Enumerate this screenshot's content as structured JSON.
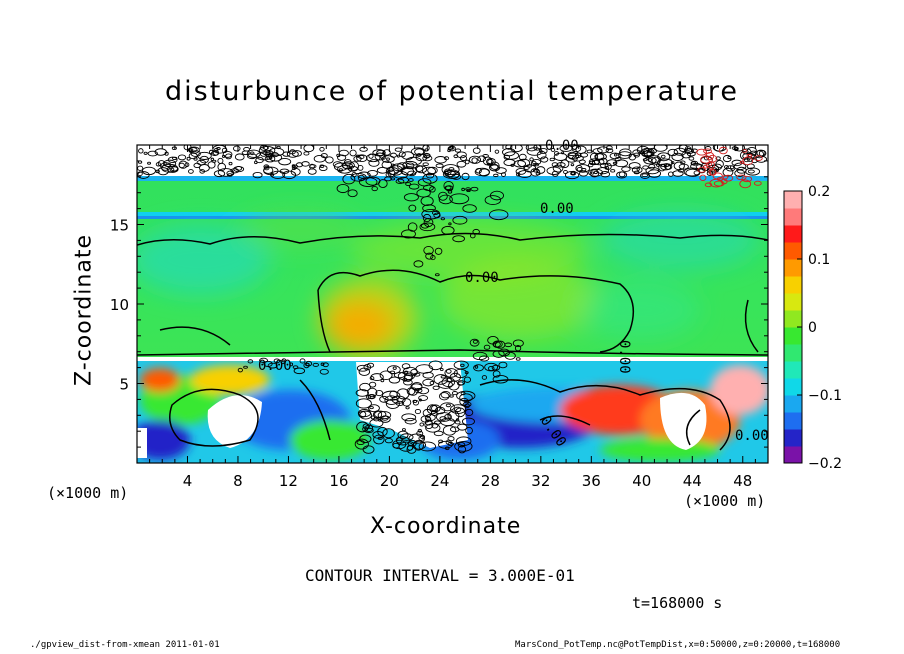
{
  "chart_data": {
    "type": "heatmap",
    "title": "disturbunce of potential temperature",
    "xlabel": "X-coordinate",
    "ylabel": "Z-coordinate",
    "x_unit_left": "(×1000 m)",
    "x_unit_right": "(×1000 m)",
    "xlim": [
      0,
      50
    ],
    "ylim": [
      0,
      20
    ],
    "xticks": [
      4,
      8,
      12,
      16,
      20,
      24,
      28,
      32,
      36,
      40,
      44,
      48
    ],
    "yticks": [
      5,
      10,
      15
    ],
    "colorbar": {
      "min": -0.2,
      "max": 0.2,
      "ticks": [
        -0.2,
        -0.1,
        0,
        0.1,
        0.2
      ],
      "tick_labels": [
        "−0.2",
        "−0.1",
        "0",
        "0.1",
        "0.2"
      ],
      "colors": [
        "#7a12a8",
        "#2424c8",
        "#1e6ef0",
        "#1aa8f0",
        "#10d8e8",
        "#20e8b8",
        "#30e870",
        "#38e830",
        "#90e820",
        "#d8e810",
        "#f8d000",
        "#ff9a00",
        "#ff5a00",
        "#ff1a1a",
        "#ff7a7a",
        "#ffb0b0"
      ]
    },
    "contour_labels": [
      "0.00",
      "0.00",
      "0.00",
      "0.00",
      "0.00",
      "0.00",
      "0.00"
    ],
    "contour_interval_text": "CONTOUR INTERVAL = 3.000E-01",
    "time_text": "t=168000 s"
  },
  "footer": {
    "left": "./gpview_dist-from-xmean  2011-01-01",
    "right": "MarsCond_PotTemp.nc@PotTempDist,x=0:50000,z=0:20000,t=168000"
  }
}
